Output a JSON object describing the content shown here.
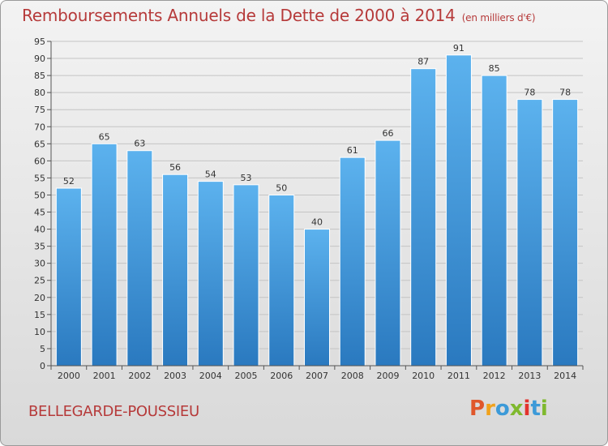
{
  "header": {
    "title": "Remboursements Annuels de la Dette de 2000 à 2014",
    "unit": "(en milliers d'€)"
  },
  "footer": {
    "commune": "BELLEGARDE-POUSSIEU",
    "logo_text": "Proxiti",
    "logo_colors": [
      "#e0572b",
      "#f0a21c",
      "#3c9ad8",
      "#7fb92e",
      "#e3342f",
      "#3c9ad8",
      "#7fb92e"
    ]
  },
  "chart_data": {
    "type": "bar",
    "title": "Remboursements Annuels de la Dette de 2000 à 2014",
    "categories": [
      "2000",
      "2001",
      "2002",
      "2003",
      "2004",
      "2005",
      "2006",
      "2007",
      "2008",
      "2009",
      "2010",
      "2011",
      "2012",
      "2013",
      "2014"
    ],
    "values": [
      52,
      65,
      63,
      56,
      54,
      53,
      50,
      40,
      61,
      66,
      87,
      91,
      85,
      78,
      78
    ],
    "ylim": [
      0,
      95
    ],
    "yticks": [
      0,
      5,
      10,
      15,
      20,
      25,
      30,
      35,
      40,
      45,
      50,
      55,
      60,
      65,
      70,
      75,
      80,
      85,
      90,
      95
    ],
    "grid": true,
    "bar_color_top": "#5cb2ee",
    "bar_color_bottom": "#2a79bf"
  }
}
